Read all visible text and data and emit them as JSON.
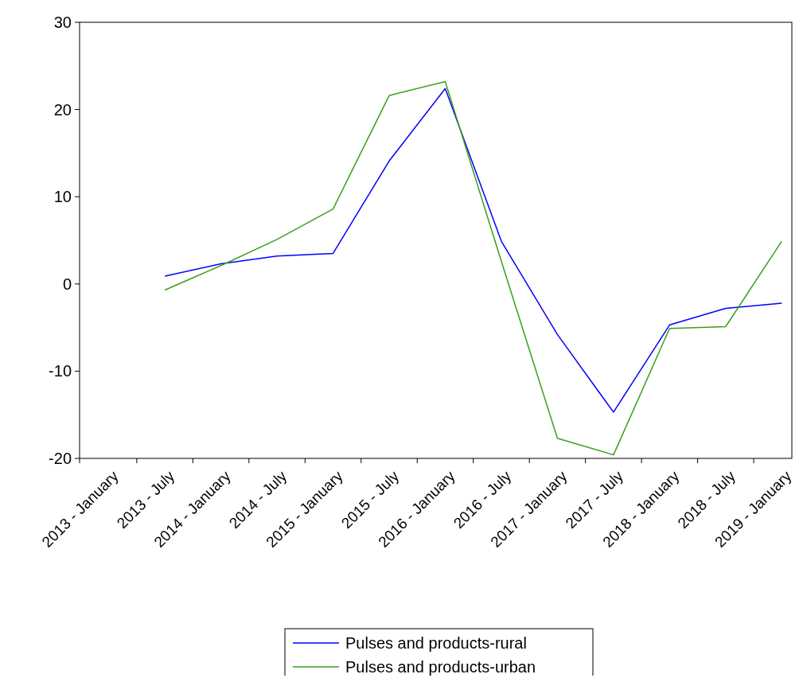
{
  "chart_data": {
    "type": "line",
    "categories": [
      "2013 - January",
      "2013 - July",
      "2014 - January",
      "2014 - July",
      "2015 - January",
      "2015 - July",
      "2016 - January",
      "2016 - July",
      "2017 - January",
      "2017 - July",
      "2018 - January",
      "2018 - July",
      "2019 - January"
    ],
    "series": [
      {
        "name": "Pulses and products-rural",
        "color": "#0000ff",
        "values": [
          null,
          0.9,
          2.3,
          3.2,
          3.5,
          14.1,
          22.4,
          4.9,
          -5.8,
          -14.7,
          -4.7,
          -2.8,
          -2.2
        ]
      },
      {
        "name": "Pulses and products-urban",
        "color": "#3a9f1c",
        "values": [
          null,
          -0.7,
          2.1,
          5.1,
          8.6,
          21.6,
          23.2,
          2.6,
          -17.7,
          -19.6,
          -5.1,
          -4.9,
          4.9
        ]
      }
    ],
    "ylim": [
      -20,
      30
    ],
    "yticks": [
      -20,
      -10,
      0,
      10,
      20,
      30
    ],
    "grid": false,
    "legend": "bottom",
    "marker": "none",
    "line_style": "solid"
  }
}
